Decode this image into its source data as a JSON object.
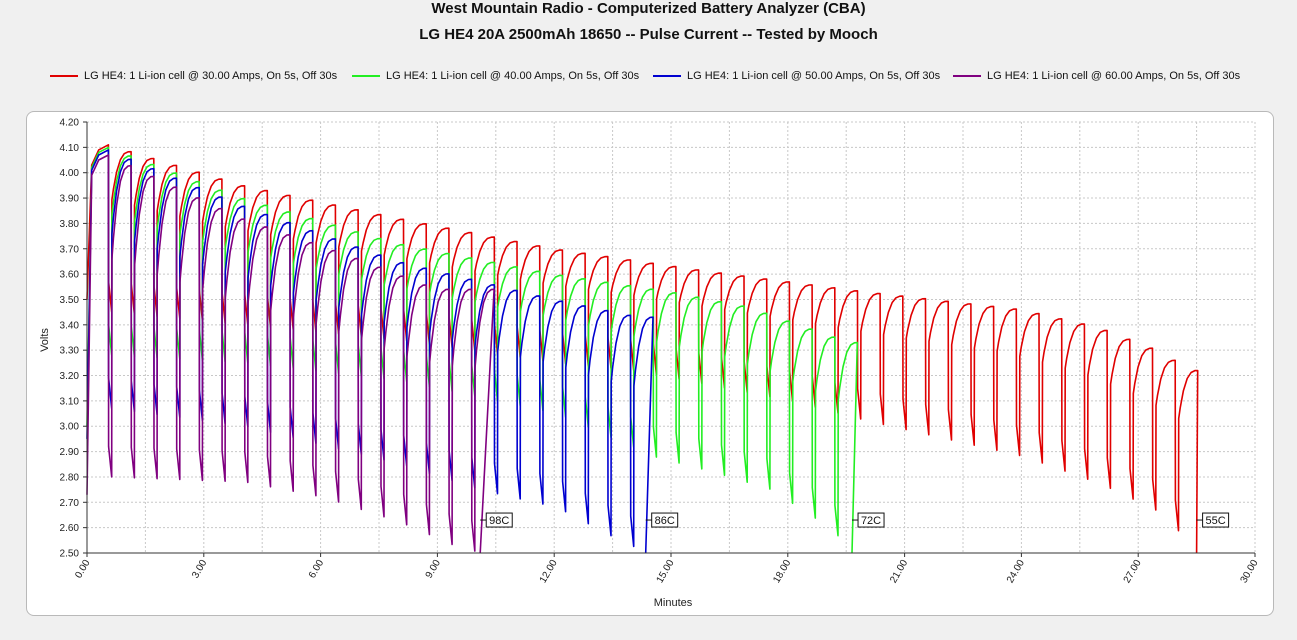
{
  "chart_data": {
    "type": "line",
    "title": "West Mountain Radio - Computerized Battery Analyzer (CBA)",
    "subtitle": "LG HE4 20A 2500mAh 18650 -- Pulse Current -- Tested by Mooch",
    "xlabel": "Minutes",
    "ylabel": "Volts",
    "xlim": [
      0,
      30
    ],
    "ylim": [
      2.5,
      4.2
    ],
    "x_ticks": [
      "0.00",
      "3.00",
      "6.00",
      "9.00",
      "12.00",
      "15.00",
      "18.00",
      "21.00",
      "24.00",
      "27.00",
      "30.00"
    ],
    "y_ticks": [
      "2.50",
      "2.60",
      "2.70",
      "2.80",
      "2.90",
      "3.00",
      "3.10",
      "3.20",
      "3.30",
      "3.40",
      "3.50",
      "3.60",
      "3.70",
      "3.80",
      "3.90",
      "4.00",
      "4.10",
      "4.20"
    ],
    "grid": true,
    "legend_position": "top",
    "pulse_period_min": 0.583,
    "series": [
      {
        "name": "LG HE4: 1 Li-ion cell @ 30.00 Amps, On 5s, Off 30s",
        "color": "#e00000",
        "end_label": "55C",
        "end_minute": 28.5,
        "start_voltage": 3.5,
        "rest_peaks": [
          [
            0.55,
            4.11
          ],
          [
            4.0,
            3.95
          ],
          [
            8.0,
            3.82
          ],
          [
            12.0,
            3.7
          ],
          [
            16.0,
            3.61
          ],
          [
            20.0,
            3.53
          ],
          [
            24.0,
            3.46
          ],
          [
            26.0,
            3.39
          ],
          [
            27.5,
            3.3
          ],
          [
            28.4,
            3.22
          ]
        ],
        "load_troughs": [
          [
            0.55,
            3.45
          ],
          [
            4.0,
            3.4
          ],
          [
            8.0,
            3.34
          ],
          [
            12.0,
            3.25
          ],
          [
            14.0,
            3.22
          ],
          [
            16.0,
            3.16
          ],
          [
            18.0,
            3.1
          ],
          [
            20.0,
            3.02
          ],
          [
            24.0,
            2.88
          ],
          [
            26.0,
            2.77
          ],
          [
            27.5,
            2.66
          ],
          [
            28.5,
            2.5
          ]
        ]
      },
      {
        "name": "LG HE4: 1 Li-ion cell @ 40.00 Amps, On 5s, Off 30s",
        "color": "#22ee22",
        "end_label": "72C",
        "end_minute": 19.65,
        "start_voltage": 3.0,
        "rest_peaks": [
          [
            0.55,
            4.1
          ],
          [
            4.0,
            3.9
          ],
          [
            8.0,
            3.72
          ],
          [
            12.0,
            3.6
          ],
          [
            15.0,
            3.53
          ],
          [
            17.0,
            3.47
          ],
          [
            18.5,
            3.39
          ],
          [
            19.6,
            3.33
          ]
        ],
        "load_troughs": [
          [
            0.55,
            3.28
          ],
          [
            4.0,
            3.25
          ],
          [
            8.0,
            3.18
          ],
          [
            12.0,
            3.05
          ],
          [
            14.5,
            2.88
          ],
          [
            16.0,
            2.82
          ],
          [
            17.5,
            2.75
          ],
          [
            19.0,
            2.6
          ],
          [
            19.65,
            2.5
          ]
        ]
      },
      {
        "name": "LG HE4: 1 Li-ion cell @ 50.00 Amps, On 5s, Off 30s",
        "color": "#0000d0",
        "end_label": "86C",
        "end_minute": 14.35,
        "start_voltage": 2.95,
        "rest_peaks": [
          [
            0.55,
            4.09
          ],
          [
            4.0,
            3.87
          ],
          [
            8.0,
            3.65
          ],
          [
            12.0,
            3.5
          ],
          [
            14.2,
            3.43
          ]
        ],
        "load_troughs": [
          [
            0.55,
            3.07
          ],
          [
            4.0,
            3.0
          ],
          [
            8.0,
            2.85
          ],
          [
            10.0,
            2.75
          ],
          [
            12.0,
            2.68
          ],
          [
            13.6,
            2.55
          ],
          [
            14.35,
            2.5
          ]
        ]
      },
      {
        "name": "LG HE4: 1 Li-ion cell @ 60.00 Amps, On 5s, Off 30s",
        "color": "#800080",
        "end_label": "98C",
        "end_minute": 10.1,
        "start_voltage": 2.73,
        "rest_peaks": [
          [
            0.55,
            4.07
          ],
          [
            4.0,
            3.82
          ],
          [
            7.0,
            3.66
          ],
          [
            9.0,
            3.54
          ],
          [
            10.0,
            3.54
          ]
        ],
        "load_troughs": [
          [
            0.55,
            2.8
          ],
          [
            4.0,
            2.78
          ],
          [
            6.0,
            2.72
          ],
          [
            8.0,
            2.62
          ],
          [
            9.5,
            2.52
          ],
          [
            10.1,
            2.5
          ]
        ]
      }
    ]
  }
}
